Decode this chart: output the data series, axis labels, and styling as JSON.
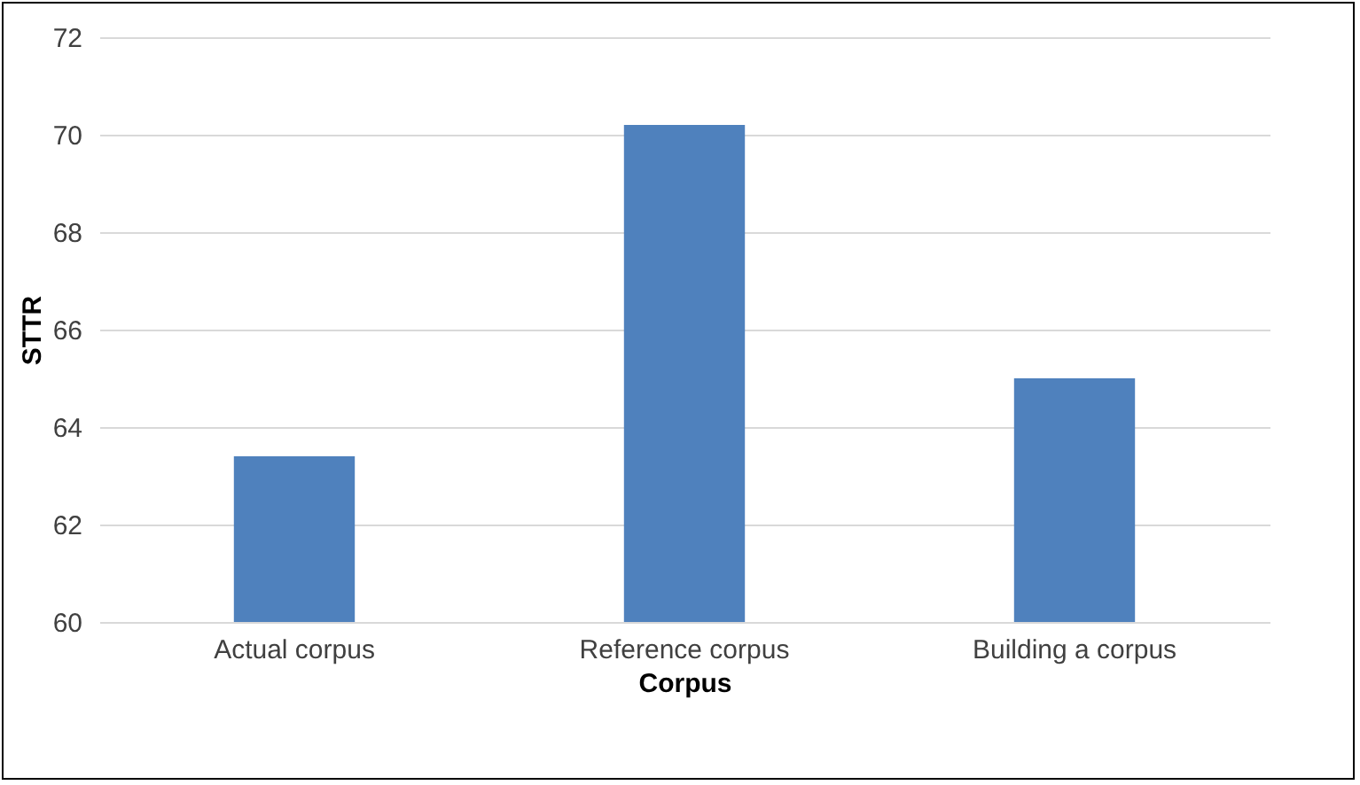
{
  "chart_data": {
    "type": "bar",
    "xlabel": "Corpus",
    "ylabel": "STTR",
    "categories": [
      "Actual corpus",
      "Reference corpus",
      "Building a corpus"
    ],
    "values": [
      63.4,
      70.2,
      65.0
    ],
    "color": "#4f81bd",
    "ylim": [
      60,
      72
    ],
    "yticks": [
      60,
      62,
      64,
      66,
      68,
      70,
      72
    ],
    "grid": "y"
  }
}
